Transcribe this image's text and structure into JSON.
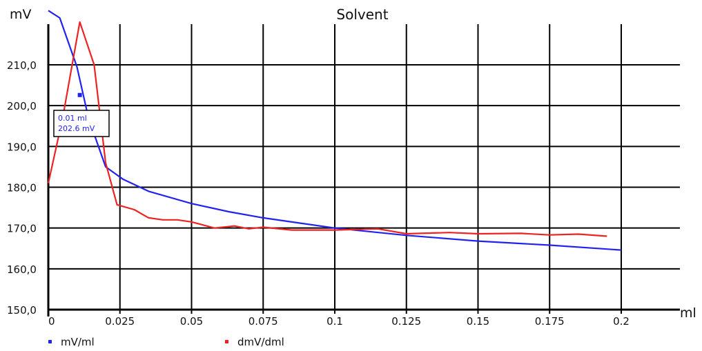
{
  "chart_data": {
    "type": "line",
    "title": "Solvent",
    "ylabel": "mV",
    "xlabel": "ml",
    "xlim": [
      0,
      0.2
    ],
    "ylim": [
      150,
      220
    ],
    "x_ticks": [
      0,
      0.025,
      0.05,
      0.075,
      0.1,
      0.125,
      0.15,
      0.175,
      0.2
    ],
    "x_tick_labels": [
      "0",
      "0.025",
      "0.05",
      "0.075",
      "0.1",
      "0.125",
      "0.15",
      "0.175",
      "0.2"
    ],
    "y_ticks": [
      150,
      160,
      170,
      180,
      190,
      200,
      210
    ],
    "y_tick_labels": [
      "150,0",
      "160,0",
      "170,0",
      "180,0",
      "190,0",
      "200,0",
      "210,0"
    ],
    "grid": true,
    "legend_position": "bottom",
    "series": [
      {
        "name": "mV/ml",
        "color": "#2222ee",
        "x": [
          0,
          0.004,
          0.01,
          0.014,
          0.02,
          0.026,
          0.035,
          0.05,
          0.063,
          0.075,
          0.088,
          0.1,
          0.125,
          0.15,
          0.175,
          0.2
        ],
        "y": [
          223.3,
          221.5,
          209.5,
          197.0,
          185.0,
          182.0,
          179.0,
          176.0,
          174.0,
          172.5,
          171.2,
          170.0,
          168.2,
          166.8,
          165.8,
          164.6
        ]
      },
      {
        "name": "dmV/dml",
        "color": "#ee2222",
        "x": [
          0,
          0.005,
          0.011,
          0.016,
          0.02,
          0.024,
          0.03,
          0.035,
          0.04,
          0.045,
          0.05,
          0.058,
          0.065,
          0.07,
          0.075,
          0.085,
          0.1,
          0.115,
          0.125,
          0.14,
          0.15,
          0.165,
          0.175,
          0.185,
          0.195
        ],
        "y": [
          181,
          197,
          220.5,
          210,
          186,
          175.7,
          174.5,
          172.5,
          172.0,
          172.0,
          171.5,
          170.0,
          170.5,
          169.8,
          170.2,
          169.5,
          169.5,
          169.8,
          168.6,
          168.9,
          168.6,
          168.7,
          168.3,
          168.5,
          168.0
        ]
      }
    ],
    "tooltip": {
      "line1": "0.01 ml",
      "line2": "202.6 mV",
      "x": 0.011,
      "y": 202.6
    }
  }
}
